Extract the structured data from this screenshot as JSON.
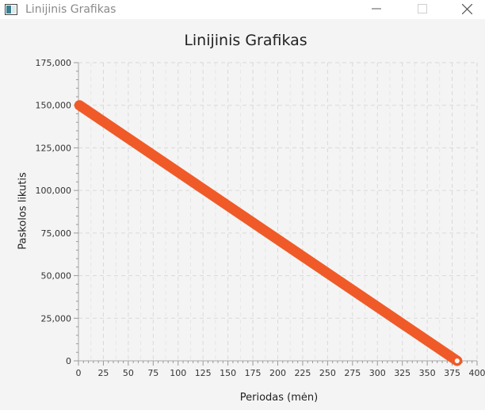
{
  "window": {
    "title": "Linijinis Grafikas",
    "icon": "app-window-icon",
    "controls": [
      "minimize-icon",
      "maximize-icon",
      "close-icon"
    ]
  },
  "chart_data": {
    "type": "line",
    "title": "Linijinis Grafikas",
    "xlabel": "Periodas (mėn)",
    "ylabel": "Paskolos likutis",
    "xlim": [
      0,
      400
    ],
    "ylim": [
      0,
      175000
    ],
    "x_ticks": [
      "0",
      "25",
      "50",
      "75",
      "100",
      "125",
      "150",
      "175",
      "200",
      "225",
      "250",
      "275",
      "300",
      "325",
      "350",
      "375",
      "400"
    ],
    "y_ticks": [
      "0",
      "25,000",
      "50,000",
      "75,000",
      "100,000",
      "125,000",
      "150,000",
      "175,000"
    ],
    "grid": true,
    "series": [
      {
        "color": "#f05a28",
        "x": [
          1,
          380
        ],
        "y": [
          150000,
          0
        ]
      }
    ]
  }
}
